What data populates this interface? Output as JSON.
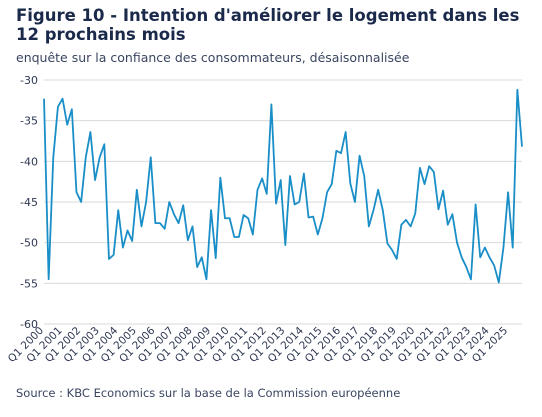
{
  "title": "Figure 10 - Intention d'améliorer le logement dans les 12 prochains mois",
  "subtitle": "enquête sur la confiance des consommateurs, désaisonnalisée",
  "source": "Source : KBC Economics sur la base de la Commission européenne",
  "colors": {
    "line": "#1a8ec7",
    "grid": "#d9d9d9",
    "text": "#1b2a4a"
  },
  "chart_data": {
    "type": "line",
    "ylim": [
      -60,
      -30
    ],
    "yticks": [
      -30,
      -35,
      -40,
      -45,
      -50,
      -55,
      -60
    ],
    "grid": true,
    "x_tick_labels": [
      "Q1 2000",
      "Q1 2001",
      "Q1 2002",
      "Q1 2003",
      "Q1 2004",
      "Q1 2005",
      "Q1 2006",
      "Q1 2007",
      "Q1 2008",
      "Q1 2009",
      "Q1 2010",
      "Q1 2011",
      "Q1 2012",
      "Q1 2013",
      "Q1 2014",
      "Q1 2015",
      "Q1 2016",
      "Q1 2017",
      "Q1 2018",
      "Q1 2019",
      "Q1 2020",
      "Q1 2021",
      "Q1 2022",
      "Q1 2023",
      "Q1 2024",
      "Q1 2025"
    ],
    "start": "Q1 2000",
    "end": "Q3 2025",
    "series": [
      {
        "values": [
          -32.3,
          -54.5,
          -39.5,
          -33.3,
          -32.3,
          -35.5,
          -33.6,
          -43.8,
          -45.0,
          -39.5,
          -36.4,
          -42.3,
          -39.5,
          -37.9,
          -52.0,
          -51.5,
          -46.0,
          -50.6,
          -48.5,
          -49.8,
          -43.5,
          -48.0,
          -45.0,
          -39.5,
          -47.6,
          -47.6,
          -48.3,
          -45.0,
          -46.5,
          -47.6,
          -45.4,
          -49.7,
          -48.0,
          -53.0,
          -51.8,
          -54.5,
          -46.0,
          -51.9,
          -42.0,
          -47.0,
          -47.0,
          -49.3,
          -49.3,
          -46.6,
          -47.0,
          -49.0,
          -43.5,
          -42.1,
          -44.0,
          -33.0,
          -45.2,
          -42.3,
          -50.3,
          -41.8,
          -45.3,
          -45.0,
          -41.5,
          -46.9,
          -46.8,
          -49.0,
          -47.0,
          -43.8,
          -42.8,
          -38.7,
          -39.0,
          -36.4,
          -42.7,
          -45.0,
          -39.3,
          -41.8,
          -48.0,
          -46.0,
          -43.5,
          -46.0,
          -50.1,
          -50.9,
          -52.0,
          -47.8,
          -47.2,
          -48.0,
          -46.4,
          -40.8,
          -42.8,
          -40.6,
          -41.3,
          -45.9,
          -43.6,
          -47.8,
          -46.5,
          -50.0,
          -51.8,
          -53.0,
          -54.5,
          -45.3,
          -51.8,
          -50.6,
          -51.8,
          -52.8,
          -54.9,
          -50.6,
          -43.8,
          -50.6,
          -31.2,
          -38.2
        ]
      }
    ]
  }
}
